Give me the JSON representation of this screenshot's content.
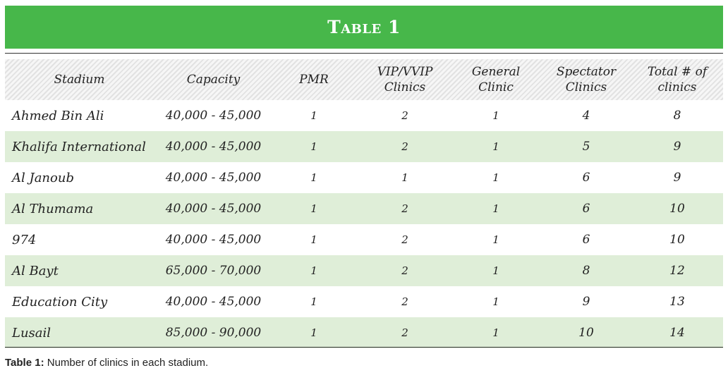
{
  "table": {
    "title": "Table 1",
    "headers": {
      "stadium": "Stadium",
      "capacity": "Capacity",
      "pmr": "PMR",
      "vip_line1": "VIP/VVIP",
      "vip_line2": "Clinics",
      "general_line1": "General",
      "general_line2": "Clinic",
      "spectator_line1": "Spectator",
      "spectator_line2": "Clinics",
      "total_line1": "Total # of",
      "total_line2": "clinics"
    },
    "rows": [
      {
        "stadium": "Ahmed Bin Ali",
        "capacity": "40,000 - 45,000",
        "pmr": "1",
        "vip": "2",
        "general": "1",
        "spectator": "4",
        "total": "8"
      },
      {
        "stadium": "Khalifa International",
        "capacity": "40,000 - 45,000",
        "pmr": "1",
        "vip": "2",
        "general": "1",
        "spectator": "5",
        "total": "9"
      },
      {
        "stadium": "Al Janoub",
        "capacity": "40,000 - 45,000",
        "pmr": "1",
        "vip": "1",
        "general": "1",
        "spectator": "6",
        "total": "9"
      },
      {
        "stadium": "Al Thumama",
        "capacity": "40,000 - 45,000",
        "pmr": "1",
        "vip": "2",
        "general": "1",
        "spectator": "6",
        "total": "10"
      },
      {
        "stadium": "974",
        "capacity": "40,000 - 45,000",
        "pmr": "1",
        "vip": "2",
        "general": "1",
        "spectator": "6",
        "total": "10"
      },
      {
        "stadium": "Al Bayt",
        "capacity": "65,000 - 70,000",
        "pmr": "1",
        "vip": "2",
        "general": "1",
        "spectator": "8",
        "total": "12"
      },
      {
        "stadium": "Education City",
        "capacity": "40,000 - 45,000",
        "pmr": "1",
        "vip": "2",
        "general": "1",
        "spectator": "9",
        "total": "13"
      },
      {
        "stadium": "Lusail",
        "capacity": "85,000 - 90,000",
        "pmr": "1",
        "vip": "2",
        "general": "1",
        "spectator": "10",
        "total": "14"
      }
    ]
  },
  "caption": {
    "label": "Table 1:",
    "text": "Number of clinics in each stadium."
  },
  "colors": {
    "banner_green": "#47b74a",
    "row_alt_green": "#dfeed8",
    "rule": "#333333"
  }
}
